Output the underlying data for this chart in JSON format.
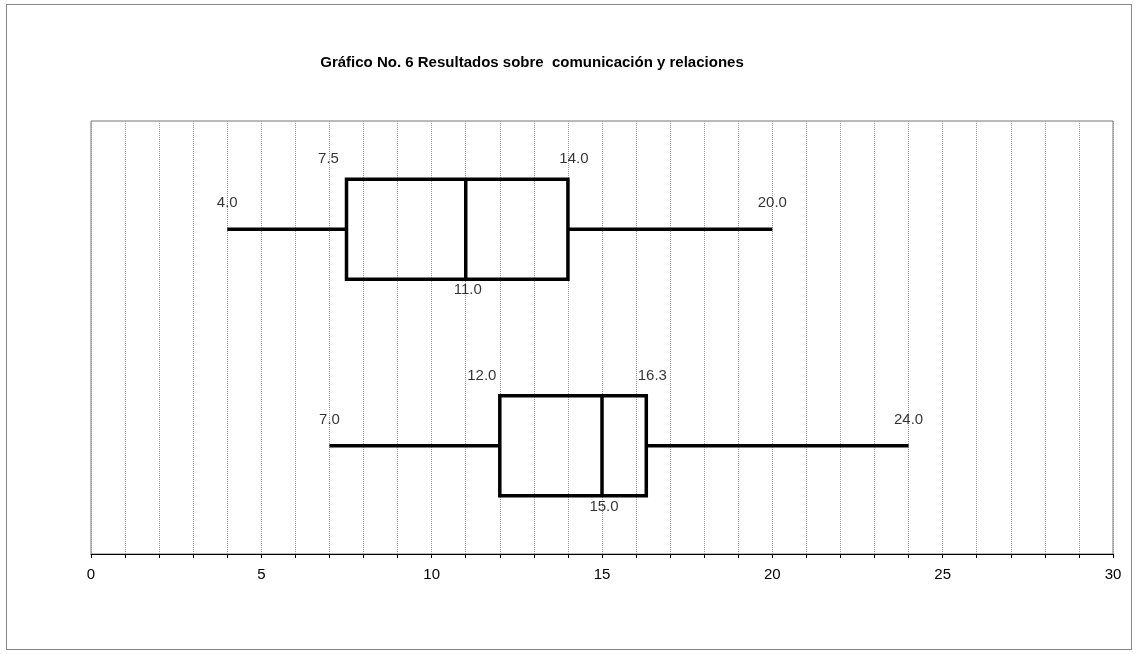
{
  "chart_data": {
    "type": "box",
    "title": "Gráfico No. 6 Resultados sobre  comunicación y relaciones",
    "orientation": "horizontal",
    "categories": [
      null,
      null
    ],
    "boxes": [
      {
        "low": 4.0,
        "q1": 7.5,
        "median": 11.0,
        "q3": 14.0,
        "high": 20.0
      },
      {
        "low": 7.0,
        "q1": 12.0,
        "median": 15.0,
        "q3": 16.3,
        "high": 24.0
      }
    ],
    "color": "#000000",
    "grid": "x",
    "annotations": [
      "4.0",
      "7.5",
      "11.0",
      "14.0",
      "20.0",
      "7.0",
      "12.0",
      "15.0",
      "16.3",
      "24.0"
    ],
    "xlim": [
      0,
      30
    ],
    "xticks": [
      0,
      {
        "value": 1,
        "label": null
      },
      {
        "value": 2,
        "label": null
      },
      {
        "value": 3,
        "label": null
      },
      {
        "value": 4,
        "label": null
      },
      5,
      {
        "value": 6,
        "label": null
      },
      {
        "value": 7,
        "label": null
      },
      {
        "value": 8,
        "label": null
      },
      {
        "value": 9,
        "label": null
      },
      10,
      {
        "value": 11,
        "label": null
      },
      {
        "value": 12,
        "label": null
      },
      {
        "value": 13,
        "label": null
      },
      {
        "value": 14,
        "label": null
      },
      15,
      {
        "value": 16,
        "label": null
      },
      {
        "value": 17,
        "label": null
      },
      {
        "value": 18,
        "label": null
      },
      {
        "value": 19,
        "label": null
      },
      20,
      {
        "value": 21,
        "label": null
      },
      {
        "value": 22,
        "label": null
      },
      {
        "value": 23,
        "label": null
      },
      {
        "value": 24,
        "label": null
      },
      25,
      {
        "value": 26,
        "label": null
      },
      {
        "value": 27,
        "label": null
      },
      {
        "value": 28,
        "label": null
      },
      {
        "value": 29,
        "label": null
      },
      30
    ]
  }
}
